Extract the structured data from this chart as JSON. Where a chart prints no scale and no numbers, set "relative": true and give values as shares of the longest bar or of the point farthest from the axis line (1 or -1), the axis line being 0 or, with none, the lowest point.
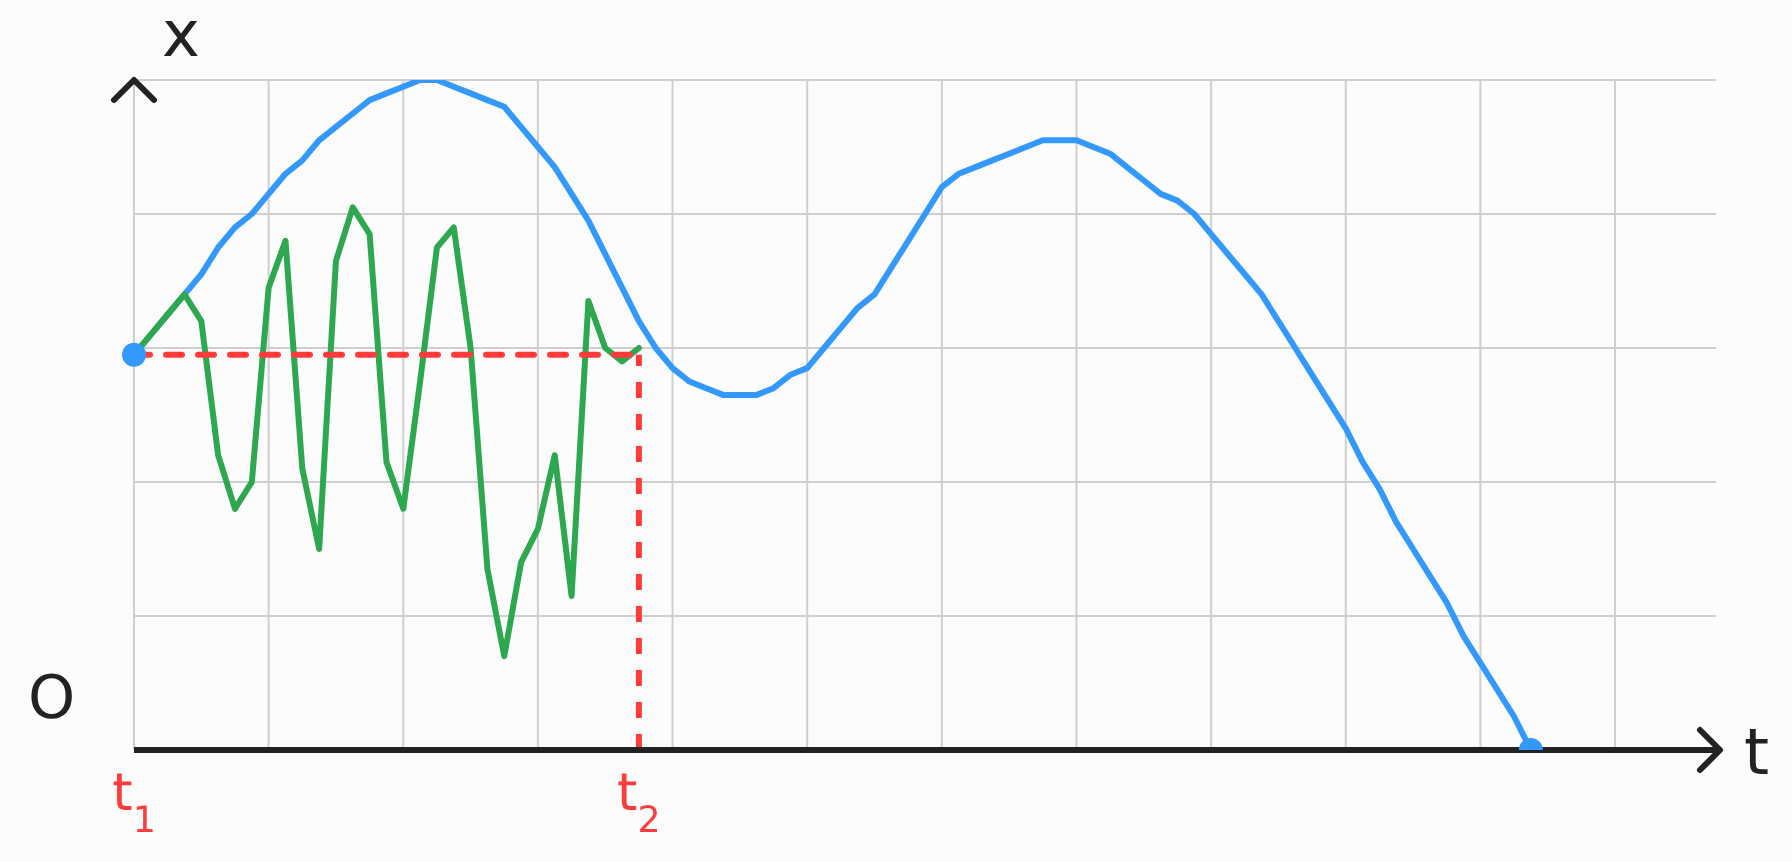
{
  "chart_data": {
    "type": "line",
    "relative": true,
    "xlabel": "t",
    "ylabel": "x",
    "annotations": [
      "O"
    ],
    "categories": [
      "t$_{1}$",
      null,
      null,
      null,
      null,
      null,
      null,
      null,
      null,
      null,
      null,
      null,
      null,
      null,
      null,
      null,
      null,
      null,
      null,
      null,
      null,
      null,
      null,
      null,
      null,
      null,
      null,
      null,
      null,
      null,
      "t$_{2}$",
      null,
      null,
      null,
      null,
      null,
      null,
      null,
      null,
      null,
      null,
      null,
      null,
      null,
      null,
      null,
      null,
      null,
      null,
      null,
      null,
      null,
      null,
      null,
      null,
      null,
      null,
      null,
      null,
      null,
      null,
      null,
      null,
      null,
      null,
      null,
      null,
      null,
      null,
      null,
      null,
      null,
      null,
      null,
      null,
      null,
      null,
      null,
      null,
      null,
      null,
      null,
      null,
      null,
      null,
      null,
      null,
      null,
      null,
      null,
      null,
      null,
      null,
      null,
      null
    ],
    "grid": true,
    "marker": "none",
    "ref_lines": [
      {
        "axis": "x",
        "value": "t$_{2}$",
        "color": "#ff3b3b",
        "line_style": "dashed"
      }
    ],
    "series": [
      {
        "color": "#3399ff",
        "values": [
          0.59,
          0.62,
          0.65,
          0.68,
          0.71,
          0.75,
          0.78,
          0.8,
          0.83,
          0.86,
          0.88,
          0.91,
          0.93,
          0.95,
          0.97,
          0.98,
          0.99,
          1,
          1,
          0.99,
          0.98,
          0.97,
          0.96,
          0.93,
          0.9,
          0.87,
          0.83,
          0.79,
          0.74,
          0.69,
          0.64,
          0.6,
          0.57,
          0.55,
          0.54,
          0.53,
          0.53,
          0.53,
          0.54,
          0.56,
          0.57,
          0.6,
          0.63,
          0.66,
          0.68,
          0.72,
          0.76,
          0.8,
          0.84,
          0.86,
          0.87,
          0.88,
          0.89,
          0.9,
          0.91,
          0.91,
          0.91,
          0.9,
          0.89,
          0.87,
          0.85,
          0.83,
          0.82,
          0.8,
          0.77,
          0.74,
          0.71,
          0.68,
          0.64,
          0.6,
          0.56,
          0.52,
          0.48,
          0.43,
          0.39,
          0.34,
          0.3,
          0.26,
          0.22,
          0.17,
          0.13,
          0.09,
          0.05,
          0,
          null,
          null,
          null,
          null,
          null,
          null,
          null,
          null,
          null,
          null,
          null
        ]
      },
      {
        "color": "#2ea84f",
        "values": [
          0.59,
          0.62,
          0.65,
          0.68,
          0.64,
          0.44,
          0.36,
          0.4,
          0.69,
          0.76,
          0.42,
          0.3,
          0.73,
          0.81,
          0.77,
          0.43,
          0.36,
          0.55,
          0.75,
          0.78,
          0.6,
          0.27,
          0.14,
          0.28,
          0.33,
          0.44,
          0.23,
          0.67,
          0.6,
          0.58,
          0.6,
          null,
          null,
          null,
          null,
          null,
          null,
          null,
          null,
          null,
          null,
          null,
          null,
          null,
          null,
          null,
          null,
          null,
          null,
          null,
          null,
          null,
          null,
          null,
          null,
          null,
          null,
          null,
          null,
          null,
          null,
          null,
          null,
          null,
          null,
          null,
          null,
          null,
          null,
          null,
          null,
          null,
          null,
          null,
          null,
          null,
          null,
          null,
          null,
          null,
          null,
          null,
          null,
          null,
          null,
          null,
          null,
          null,
          null,
          null,
          null,
          null,
          null,
          null,
          null
        ]
      },
      {
        "color": "#ff3b3b",
        "line_style": "dashed",
        "values": [
          0.59,
          0.59,
          0.59,
          0.59,
          0.59,
          0.59,
          0.59,
          0.59,
          0.59,
          0.59,
          0.59,
          0.59,
          0.59,
          0.59,
          0.59,
          0.59,
          0.59,
          0.59,
          0.59,
          0.59,
          0.59,
          0.59,
          0.59,
          0.59,
          0.59,
          0.59,
          0.59,
          0.59,
          0.59,
          0.59,
          0.59,
          null,
          null,
          null,
          null,
          null,
          null,
          null,
          null,
          null,
          null,
          null,
          null,
          null,
          null,
          null,
          null,
          null,
          null,
          null,
          null,
          null,
          null,
          null,
          null,
          null,
          null,
          null,
          null,
          null,
          null,
          null,
          null,
          null,
          null,
          null,
          null,
          null,
          null,
          null,
          null,
          null,
          null,
          null,
          null,
          null,
          null,
          null,
          null,
          null,
          null,
          null,
          null,
          null,
          null,
          null,
          null,
          null,
          null,
          null,
          null,
          null,
          null,
          null,
          null
        ]
      },
      {
        "type": "scatter",
        "color": "#3399ff",
        "marker": "circle",
        "values": [
          0.59,
          null,
          null,
          null,
          null,
          null,
          null,
          null,
          null,
          null,
          null,
          null,
          null,
          null,
          null,
          null,
          null,
          null,
          null,
          null,
          null,
          null,
          null,
          null,
          null,
          null,
          null,
          null,
          null,
          null,
          null,
          null,
          null,
          null,
          null,
          null,
          null,
          null,
          null,
          null,
          null,
          null,
          null,
          null,
          null,
          null,
          null,
          null,
          null,
          null,
          null,
          null,
          null,
          null,
          null,
          null,
          null,
          null,
          null,
          null,
          null,
          null,
          null,
          null,
          null,
          null,
          null,
          null,
          null,
          null,
          null,
          null,
          null,
          null,
          null,
          null,
          null,
          null,
          null,
          null,
          null,
          null,
          null,
          0,
          null,
          null,
          null,
          null,
          null,
          null,
          null,
          null,
          null,
          null,
          null
        ]
      }
    ]
  }
}
